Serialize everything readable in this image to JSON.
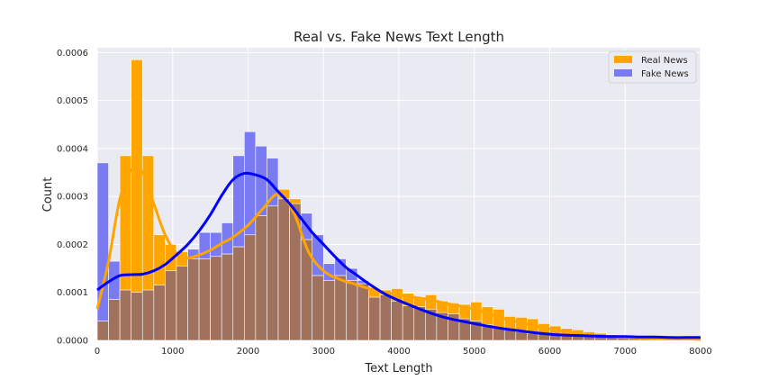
{
  "chart_data": {
    "type": "histogram",
    "title": "Real vs. Fake News Text Length",
    "xlabel": "Text Length",
    "ylabel": "Count",
    "xlim": [
      0,
      8000
    ],
    "ylim": [
      0,
      0.00061
    ],
    "x_ticks": [
      0,
      1000,
      2000,
      3000,
      4000,
      5000,
      6000,
      7000,
      8000
    ],
    "x_tick_labels": [
      "0",
      "1000",
      "2000",
      "3000",
      "4000",
      "5000",
      "6000",
      "7000",
      "8000"
    ],
    "y_ticks": [
      0,
      0.0001,
      0.0002,
      0.0003,
      0.0004,
      0.0005,
      0.0006
    ],
    "y_tick_labels": [
      "0.0000",
      "0.0001",
      "0.0002",
      "0.0003",
      "0.0004",
      "0.0005",
      "0.0006"
    ],
    "grid": true,
    "legend_position": "top-right",
    "bin_width": 150,
    "series": [
      {
        "name": "Real News",
        "color": "#ffa500",
        "bin_starts": [
          0,
          150,
          300,
          450,
          600,
          750,
          900,
          1050,
          1200,
          1350,
          1500,
          1650,
          1800,
          1950,
          2100,
          2250,
          2400,
          2550,
          2700,
          2850,
          3000,
          3150,
          3300,
          3450,
          3600,
          3750,
          3900,
          4050,
          4200,
          4350,
          4500,
          4650,
          4800,
          4950,
          5100,
          5250,
          5400,
          5550,
          5700,
          5850,
          6000,
          6150,
          6300,
          6450,
          6600,
          6750,
          6900,
          7050,
          7200,
          7350,
          7500,
          7650,
          7800
        ],
        "density": [
          4e-05,
          8.5e-05,
          0.000385,
          0.000585,
          0.000385,
          0.00022,
          0.0002,
          0.000185,
          0.00017,
          0.00017,
          0.000175,
          0.00018,
          0.000195,
          0.00022,
          0.00026,
          0.00028,
          0.000315,
          0.000295,
          0.00021,
          0.000135,
          0.000125,
          0.000135,
          0.000125,
          0.000118,
          0.000108,
          0.000105,
          0.000108,
          9.8e-05,
          9e-05,
          9.5e-05,
          8.2e-05,
          7.8e-05,
          7.5e-05,
          8e-05,
          7e-05,
          6.5e-05,
          5e-05,
          4.8e-05,
          4.5e-05,
          3.5e-05,
          3e-05,
          2.5e-05,
          2.2e-05,
          1.8e-05,
          1.5e-05,
          1.2e-05,
          1e-05,
          8e-06,
          7e-06,
          6e-06,
          5e-06,
          5e-06,
          4e-06
        ],
        "kde_x": [
          0,
          150,
          300,
          450,
          600,
          750,
          900,
          1050,
          1200,
          1350,
          1500,
          1650,
          1800,
          2000,
          2200,
          2400,
          2600,
          2800,
          3000,
          3200,
          3400,
          3600,
          3800,
          4000,
          4200,
          4400,
          4600,
          4800,
          5000,
          5200,
          5400,
          5600,
          5800,
          6000,
          6200,
          6400,
          6600,
          6800,
          7000,
          7200,
          7400,
          7600,
          7800,
          8000
        ],
        "kde_y": [
          6.5e-05,
          0.000165,
          0.000295,
          0.000355,
          0.00035,
          0.000285,
          0.00022,
          0.000182,
          0.000172,
          0.000178,
          0.000188,
          0.000202,
          0.000215,
          0.00024,
          0.000275,
          0.000305,
          0.000268,
          0.000185,
          0.000145,
          0.000128,
          0.000118,
          0.000108,
          0.0001,
          9.5e-05,
          9e-05,
          8.5e-05,
          7.8e-05,
          7.2e-05,
          6.5e-05,
          5.5e-05,
          4.5e-05,
          3.8e-05,
          3e-05,
          2.4e-05,
          1.8e-05,
          1.3e-05,
          1e-05,
          8e-06,
          6e-06,
          5e-06,
          4e-06,
          3e-06,
          3e-06,
          2e-06
        ]
      },
      {
        "name": "Fake News",
        "color": "#7a7af2",
        "bin_starts": [
          0,
          150,
          300,
          450,
          600,
          750,
          900,
          1050,
          1200,
          1350,
          1500,
          1650,
          1800,
          1950,
          2100,
          2250,
          2400,
          2550,
          2700,
          2850,
          3000,
          3150,
          3300,
          3450,
          3600,
          3750,
          3900,
          4050,
          4200,
          4350,
          4500,
          4650,
          4800,
          4950,
          5100,
          5250,
          5400,
          5550,
          5700,
          5850,
          6000,
          6150,
          6300,
          6450,
          6600,
          6750,
          6900,
          7050,
          7200,
          7350,
          7500,
          7650,
          7800
        ],
        "density": [
          0.00037,
          0.000165,
          0.000105,
          0.0001,
          0.000105,
          0.000115,
          0.000145,
          0.000155,
          0.00019,
          0.000225,
          0.000225,
          0.000245,
          0.000385,
          0.000435,
          0.000405,
          0.00038,
          0.000295,
          0.000285,
          0.000265,
          0.00022,
          0.00016,
          0.00017,
          0.00015,
          0.000125,
          9e-05,
          9.5e-05,
          8.2e-05,
          7.2e-05,
          7e-05,
          6.5e-05,
          5.8e-05,
          5.5e-05,
          4.5e-05,
          4e-05,
          3.3e-05,
          2.5e-05,
          2.2e-05,
          1.8e-05,
          1.5e-05,
          1.3e-05,
          1.2e-05,
          1e-05,
          9e-06,
          8e-06,
          8e-06,
          7e-06,
          6e-06,
          6e-06,
          6e-06,
          5e-06,
          5e-06,
          5e-06,
          5e-06
        ],
        "kde_x": [
          0,
          150,
          300,
          450,
          600,
          750,
          900,
          1050,
          1200,
          1350,
          1500,
          1650,
          1800,
          1950,
          2100,
          2250,
          2400,
          2550,
          2700,
          2850,
          3000,
          3150,
          3300,
          3450,
          3600,
          3800,
          4000,
          4200,
          4400,
          4600,
          4800,
          5000,
          5200,
          5400,
          5600,
          5800,
          6000,
          6200,
          6400,
          6600,
          6800,
          7000,
          7200,
          7400,
          7600,
          7800,
          8000
        ],
        "kde_y": [
          0.000105,
          0.000122,
          0.000135,
          0.000137,
          0.000138,
          0.000145,
          0.000158,
          0.000178,
          0.0002,
          0.000228,
          0.000262,
          0.000302,
          0.000335,
          0.000348,
          0.000345,
          0.000335,
          0.00031,
          0.000285,
          0.000255,
          0.000225,
          0.0002,
          0.000175,
          0.000152,
          0.000135,
          0.000118,
          9.8e-05,
          8.3e-05,
          7e-05,
          5.8e-05,
          4.8e-05,
          4.1e-05,
          3.5e-05,
          2.9e-05,
          2.4e-05,
          2e-05,
          1.6e-05,
          1.3e-05,
          1.1e-05,
          1e-05,
          9e-06,
          8e-06,
          8e-06,
          7e-06,
          7e-06,
          6e-06,
          6e-06,
          6e-06
        ]
      }
    ],
    "kde_colors": {
      "Real News": "#ffa500",
      "Fake News": "#0000ff"
    },
    "overlap_color": "#a0725e",
    "background_color": "#eaeaf2",
    "grid_color": "#ffffff"
  }
}
